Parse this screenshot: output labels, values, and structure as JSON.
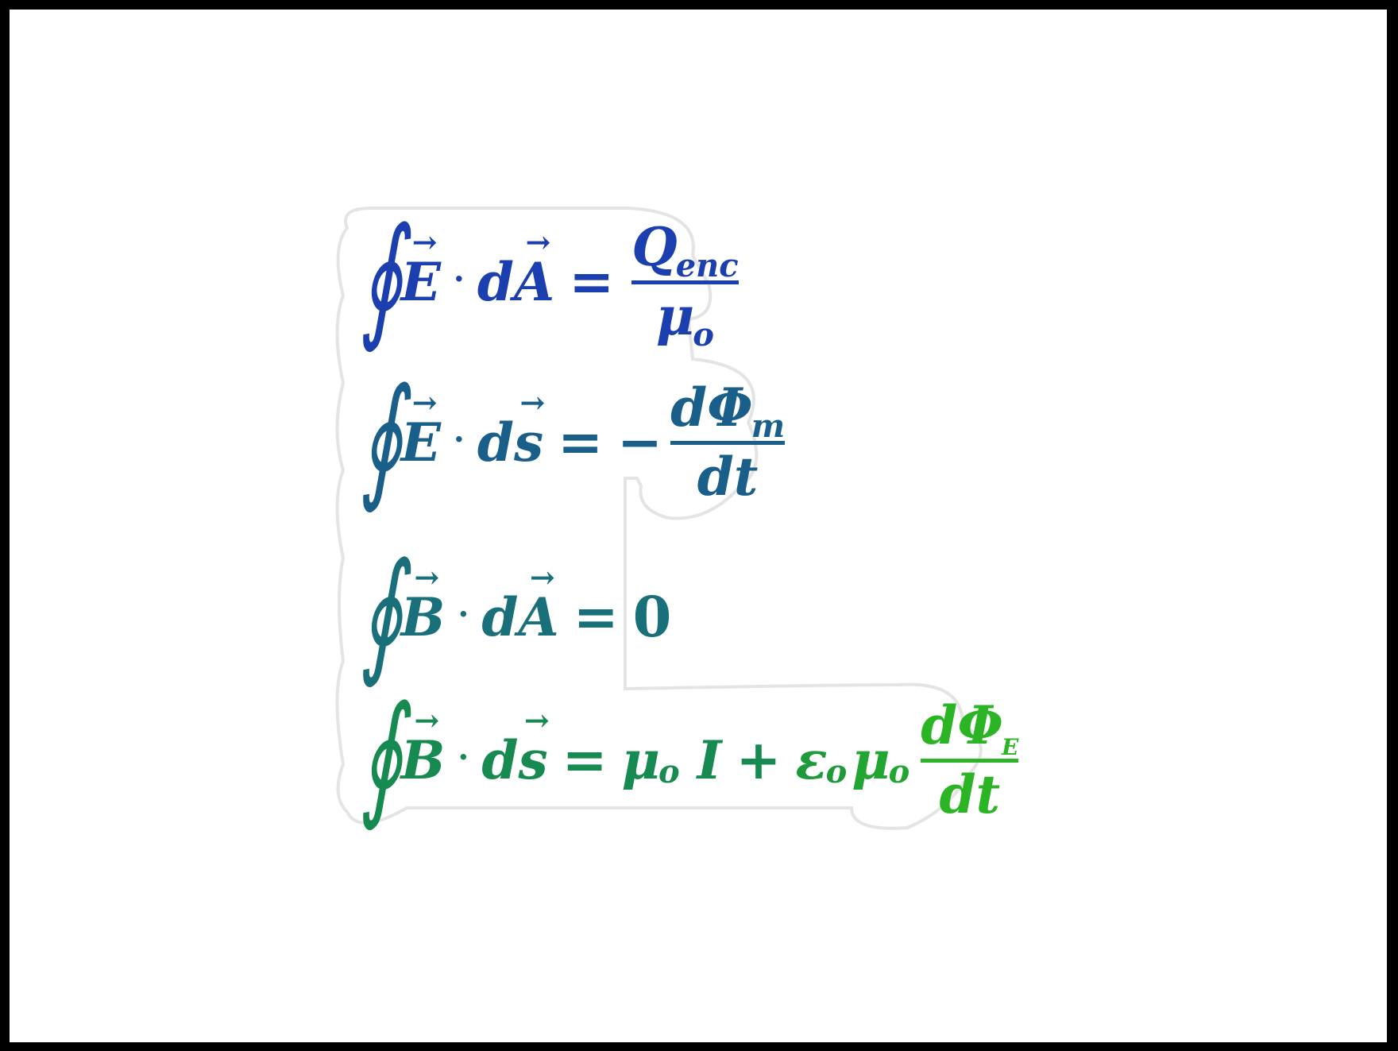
{
  "equations": [
    {
      "lhs_field": "E",
      "lhs_element": "A",
      "rhs_numerator": "Q",
      "rhs_numerator_sub": "enc",
      "rhs_denominator": "μ",
      "rhs_denominator_sub": "o",
      "color": "#1b3fae"
    },
    {
      "lhs_field": "E",
      "lhs_element": "s",
      "rhs_sign": "−",
      "rhs_numerator": "dΦ",
      "rhs_numerator_sub": "m",
      "rhs_denominator": "dt",
      "color": "#1a5f8a"
    },
    {
      "lhs_field": "B",
      "lhs_element": "A",
      "rhs_value": "0",
      "color": "#19707a"
    },
    {
      "lhs_field": "B",
      "lhs_element": "s",
      "rhs_term1": "μ",
      "rhs_term1_sub": "o",
      "rhs_term2": "I",
      "rhs_plus": "+",
      "rhs_term3a": "ε",
      "rhs_term3a_sub": "o",
      "rhs_term3b": "μ",
      "rhs_term3b_sub": "o",
      "rhs_numerator": "dΦ",
      "rhs_numerator_sub": "E",
      "rhs_denominator": "dt",
      "color": "#168a50",
      "accent": "#2bb524"
    }
  ],
  "glyphs": {
    "integral": "∮",
    "arrow": "→",
    "dot": "·",
    "equals": "=",
    "d": "d"
  }
}
